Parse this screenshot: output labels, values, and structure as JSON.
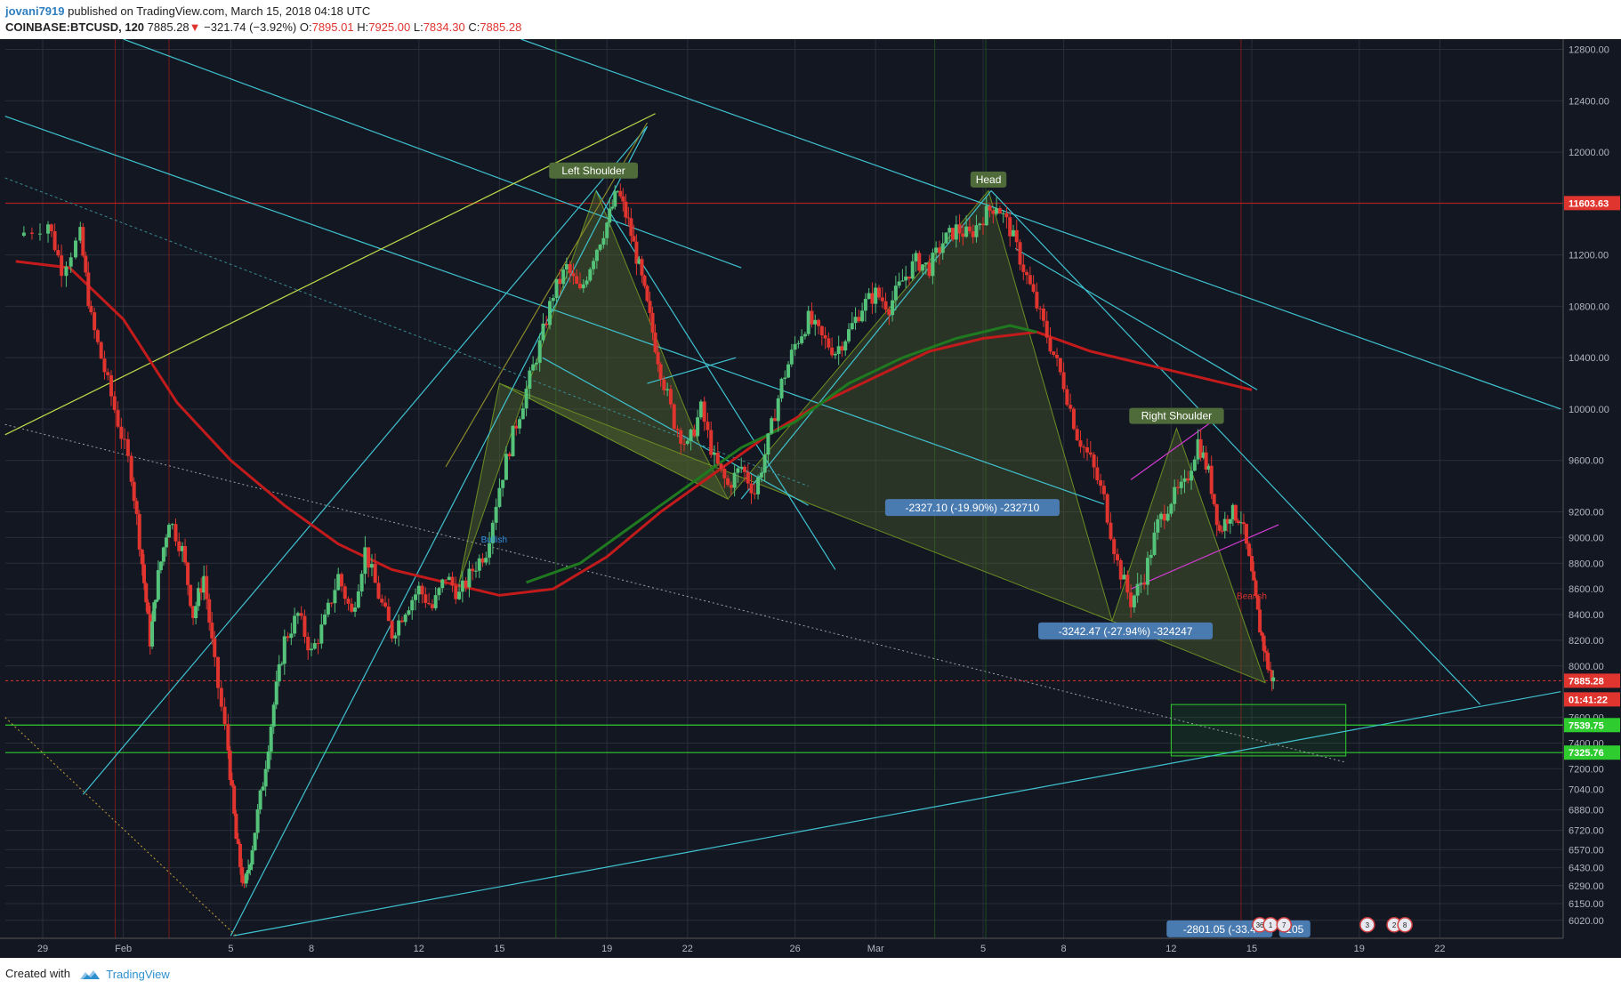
{
  "header": {
    "user": "jovani7919",
    "published": " published on TradingView.com, March 15, 2018 04:18 UTC",
    "symbol": "COINBASE:BTCUSD, 120",
    "last": "7885.28",
    "change": "−321.74 (−3.92%)",
    "o_label": "O:",
    "o_value": "7895.01",
    "h_label": "H:",
    "h_value": "7925.00",
    "l_label": "L:",
    "l_value": "7834.30",
    "c_label": "C:",
    "c_value": "7885.28"
  },
  "footer": {
    "created": "Created with",
    "brand": "TradingView"
  },
  "colors": {
    "background": "#131722",
    "grid": "#2a2e39",
    "cyan": "#3fc3d1",
    "up": "#55c27a",
    "down": "#e0342f",
    "ma200": "#c31b1b",
    "ma100": "#1f7a1f",
    "wedge": "#c2d94a",
    "pattern_fill": "#556b2f"
  },
  "chart_data": {
    "type": "candlestick",
    "symbol": "COINBASE:BTCUSD",
    "interval": "120",
    "y_range": [
      5880,
      12880
    ],
    "x_ticks": [
      {
        "label": "29",
        "day": 0
      },
      {
        "label": "Feb",
        "day": 3
      },
      {
        "label": "5",
        "day": 7
      },
      {
        "label": "8",
        "day": 10
      },
      {
        "label": "12",
        "day": 14
      },
      {
        "label": "15",
        "day": 17
      },
      {
        "label": "19",
        "day": 21
      },
      {
        "label": "22",
        "day": 24
      },
      {
        "label": "26",
        "day": 28
      },
      {
        "label": "Mar",
        "day": 31
      },
      {
        "label": "5",
        "day": 35
      },
      {
        "label": "8",
        "day": 38
      },
      {
        "label": "12",
        "day": 42
      },
      {
        "label": "15",
        "day": 45
      },
      {
        "label": "19",
        "day": 49
      },
      {
        "label": "22",
        "day": 52
      }
    ],
    "y_ticks": [
      6020,
      6150,
      6290,
      6430,
      6570,
      6720,
      6880,
      7040,
      7200,
      7400,
      7600,
      8000,
      8200,
      8400,
      8600,
      8800,
      9000,
      9200,
      9600,
      10000,
      10400,
      10800,
      11200,
      11600,
      12000,
      12400,
      12800
    ],
    "price_tags": [
      {
        "label": "11603.63",
        "value": 11603.63,
        "color": "#e0342f"
      },
      {
        "label": "7885.28",
        "value": 7885.28,
        "color": "#e0342f"
      },
      {
        "label": "01:41:22",
        "value": 7740,
        "color": "#e0342f"
      },
      {
        "label": "7539.75",
        "value": 7539.75,
        "color": "#2ecc2e"
      },
      {
        "label": "7325.76",
        "value": 7325.76,
        "color": "#2ecc2e"
      }
    ],
    "pattern_labels": [
      {
        "text": "Left Shoulder",
        "day": 20.5,
        "price": 11850
      },
      {
        "text": "Head",
        "day": 35.2,
        "price": 11780
      },
      {
        "text": "Right Shoulder",
        "day": 42.2,
        "price": 9940
      }
    ],
    "measure_labels": [
      {
        "text": "-2327.10 (-19.90%) -232710",
        "day": 34.6,
        "price": 9230
      },
      {
        "text": "-3242.47 (-27.94%) -324247",
        "day": 40.3,
        "price": 8270
      },
      {
        "text": "-2801.05 (-33.4",
        "day": 43.8,
        "price": 5950
      },
      {
        "text": "105",
        "day": 46.6,
        "price": 5950
      }
    ],
    "signal_labels": [
      {
        "text": "Bullish",
        "day": 16.8,
        "price": 8960,
        "color": "#2f90e0"
      },
      {
        "text": "Bearish",
        "day": 45.0,
        "price": 8520,
        "color": "#e0342f"
      }
    ],
    "event_badges": [
      {
        "text": "36",
        "day": 45.3
      },
      {
        "text": "1",
        "day": 45.7
      },
      {
        "text": "7",
        "day": 46.2
      },
      {
        "text": "3",
        "day": 49.3
      },
      {
        "text": "2",
        "day": 50.3
      },
      {
        "text": "8",
        "day": 50.7
      }
    ],
    "price_path": [
      [
        -1,
        11350
      ],
      [
        0.2,
        11450
      ],
      [
        0.7,
        11100
      ],
      [
        1.4,
        11350
      ],
      [
        1.8,
        10700
      ],
      [
        2.3,
        10300
      ],
      [
        2.8,
        9900
      ],
      [
        3.3,
        9500
      ],
      [
        3.7,
        8800
      ],
      [
        4.0,
        8200
      ],
      [
        4.3,
        8700
      ],
      [
        4.7,
        9150
      ],
      [
        5.2,
        8900
      ],
      [
        5.6,
        8400
      ],
      [
        6.0,
        8700
      ],
      [
        6.4,
        8000
      ],
      [
        6.9,
        7350
      ],
      [
        7.2,
        6650
      ],
      [
        7.5,
        6250
      ],
      [
        7.8,
        6600
      ],
      [
        8.2,
        7100
      ],
      [
        8.6,
        7700
      ],
      [
        9.0,
        8200
      ],
      [
        9.5,
        8400
      ],
      [
        10.0,
        8100
      ],
      [
        10.5,
        8350
      ],
      [
        11.0,
        8700
      ],
      [
        11.5,
        8400
      ],
      [
        12.0,
        8900
      ],
      [
        12.5,
        8550
      ],
      [
        13.0,
        8250
      ],
      [
        13.5,
        8450
      ],
      [
        14.0,
        8600
      ],
      [
        14.5,
        8450
      ],
      [
        15.0,
        8700
      ],
      [
        15.5,
        8550
      ],
      [
        16.0,
        8750
      ],
      [
        16.5,
        8900
      ],
      [
        17.0,
        9400
      ],
      [
        17.5,
        9800
      ],
      [
        18.0,
        10150
      ],
      [
        18.5,
        10500
      ],
      [
        19.0,
        10900
      ],
      [
        19.5,
        11100
      ],
      [
        20.0,
        10900
      ],
      [
        20.5,
        11200
      ],
      [
        21.0,
        11450
      ],
      [
        21.4,
        11700
      ],
      [
        21.8,
        11450
      ],
      [
        22.2,
        11100
      ],
      [
        22.6,
        10700
      ],
      [
        23.0,
        10300
      ],
      [
        23.5,
        9900
      ],
      [
        24.0,
        9700
      ],
      [
        24.5,
        10000
      ],
      [
        25.0,
        9600
      ],
      [
        25.5,
        9400
      ],
      [
        26.0,
        9550
      ],
      [
        26.5,
        9350
      ],
      [
        27.0,
        9750
      ],
      [
        27.5,
        10200
      ],
      [
        28.0,
        10500
      ],
      [
        28.5,
        10700
      ],
      [
        29.0,
        10550
      ],
      [
        29.5,
        10450
      ],
      [
        30.0,
        10600
      ],
      [
        30.5,
        10800
      ],
      [
        31.0,
        10900
      ],
      [
        31.5,
        10800
      ],
      [
        32.0,
        11000
      ],
      [
        32.5,
        11150
      ],
      [
        33.0,
        11100
      ],
      [
        33.5,
        11300
      ],
      [
        34.0,
        11400
      ],
      [
        34.5,
        11350
      ],
      [
        35.0,
        11500
      ],
      [
        35.5,
        11600
      ],
      [
        36.0,
        11400
      ],
      [
        36.5,
        11100
      ],
      [
        37.0,
        10800
      ],
      [
        37.5,
        10500
      ],
      [
        38.0,
        10200
      ],
      [
        38.5,
        9800
      ],
      [
        39.0,
        9600
      ],
      [
        39.5,
        9300
      ],
      [
        40.0,
        8800
      ],
      [
        40.5,
        8500
      ],
      [
        41.0,
        8700
      ],
      [
        41.5,
        9100
      ],
      [
        42.0,
        9300
      ],
      [
        42.5,
        9400
      ],
      [
        43.0,
        9750
      ],
      [
        43.4,
        9500
      ],
      [
        43.8,
        9050
      ],
      [
        44.2,
        9200
      ],
      [
        44.6,
        9150
      ],
      [
        45.0,
        8700
      ],
      [
        45.3,
        8300
      ],
      [
        45.6,
        8000
      ],
      [
        45.8,
        7885
      ]
    ],
    "ma_red_slow": [
      [
        -1,
        11150
      ],
      [
        1,
        11100
      ],
      [
        3,
        10700
      ],
      [
        5,
        10050
      ],
      [
        7,
        9600
      ],
      [
        9,
        9250
      ],
      [
        11,
        8950
      ],
      [
        13,
        8750
      ],
      [
        15,
        8650
      ],
      [
        17,
        8550
      ],
      [
        19,
        8600
      ],
      [
        21,
        8850
      ],
      [
        23,
        9200
      ],
      [
        25,
        9500
      ],
      [
        27,
        9800
      ],
      [
        29,
        10050
      ],
      [
        31,
        10250
      ],
      [
        33,
        10450
      ],
      [
        35,
        10550
      ],
      [
        37,
        10600
      ],
      [
        39,
        10450
      ],
      [
        41,
        10350
      ],
      [
        43,
        10250
      ],
      [
        45,
        10150
      ]
    ],
    "ma_green": [
      [
        18,
        8650
      ],
      [
        20,
        8800
      ],
      [
        22,
        9100
      ],
      [
        24,
        9400
      ],
      [
        26,
        9700
      ],
      [
        28,
        9900
      ],
      [
        30,
        10200
      ],
      [
        32,
        10400
      ],
      [
        34,
        10550
      ],
      [
        36,
        10650
      ],
      [
        37,
        10600
      ]
    ]
  }
}
